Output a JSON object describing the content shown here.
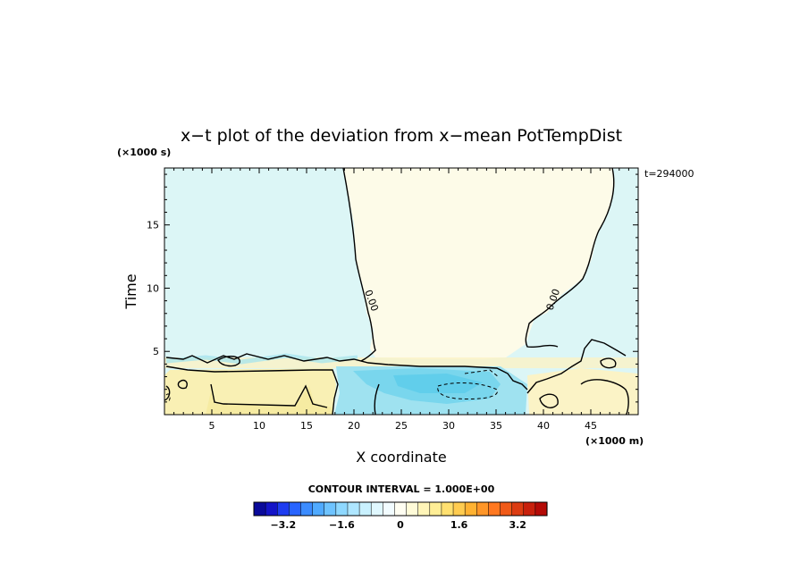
{
  "chart_data": {
    "type": "heatmap",
    "title": "x−t plot of the deviation from x−mean PotTempDist",
    "xlabel": "X coordinate",
    "ylabel": "Time",
    "x_unit": "(×1000 m)",
    "y_unit": "(×1000 s)",
    "time_stamp": "t=294000",
    "xlim": [
      0,
      50
    ],
    "ylim": [
      0,
      19.5
    ],
    "x_ticks": [
      5,
      10,
      15,
      20,
      25,
      30,
      35,
      40,
      45
    ],
    "y_ticks": [
      5,
      10,
      15
    ],
    "contour_interval_text": "CONTOUR INTERVAL = 1.000E+00",
    "contour_labels": [
      "0.00",
      "0.00"
    ],
    "colorbar": {
      "min": -4.0,
      "max": 4.0,
      "tick_labels": [
        "−3.2",
        "−1.6",
        "0",
        "1.6",
        "3.2"
      ],
      "tick_values": [
        -3.2,
        -1.6,
        0,
        1.6,
        3.2
      ]
    },
    "regions": [
      {
        "name": "upper-left",
        "sign": "negative",
        "approx_value": -0.2,
        "x_range": [
          0,
          19
        ],
        "t_range": [
          5,
          19.5
        ]
      },
      {
        "name": "upper-center",
        "sign": "positive",
        "approx_value": 0.1,
        "x_range": [
          19,
          47
        ],
        "t_range": [
          5,
          19.5
        ]
      },
      {
        "name": "upper-right",
        "sign": "negative",
        "approx_value": -0.2,
        "x_range": [
          38,
          50
        ],
        "t_range": [
          5,
          19.5
        ]
      },
      {
        "name": "lower-left",
        "sign": "positive",
        "approx_value": 0.6,
        "x_range": [
          0,
          18
        ],
        "t_range": [
          0,
          4
        ]
      },
      {
        "name": "lower-center",
        "sign": "negative",
        "approx_value": -0.8,
        "x_range": [
          18,
          37
        ],
        "t_range": [
          0,
          4
        ]
      },
      {
        "name": "lower-right",
        "sign": "positive",
        "approx_value": 0.3,
        "x_range": [
          37,
          50
        ],
        "t_range": [
          0,
          4
        ]
      }
    ]
  },
  "colors": {
    "negative_light": "#dcf6f6",
    "positive_light": "#fdfbe8",
    "positive_mid": "#f9f0b4",
    "negative_mid": "#9fe2f0",
    "negative_strong": "#4ec9ea",
    "colorbar": [
      "#0a0a9a",
      "#1414c8",
      "#1e3cf0",
      "#2864ff",
      "#3c8cff",
      "#50aaff",
      "#6ec3ff",
      "#8ed8ff",
      "#aee6ff",
      "#c9f1ff",
      "#e0f8ff",
      "#f2fcff",
      "#fffef2",
      "#fffbd8",
      "#fff5b8",
      "#ffee96",
      "#ffe070",
      "#ffcc50",
      "#ffb232",
      "#ff9628",
      "#ff7820",
      "#f05a18",
      "#dc3c12",
      "#c8200c",
      "#b40a06"
    ]
  }
}
